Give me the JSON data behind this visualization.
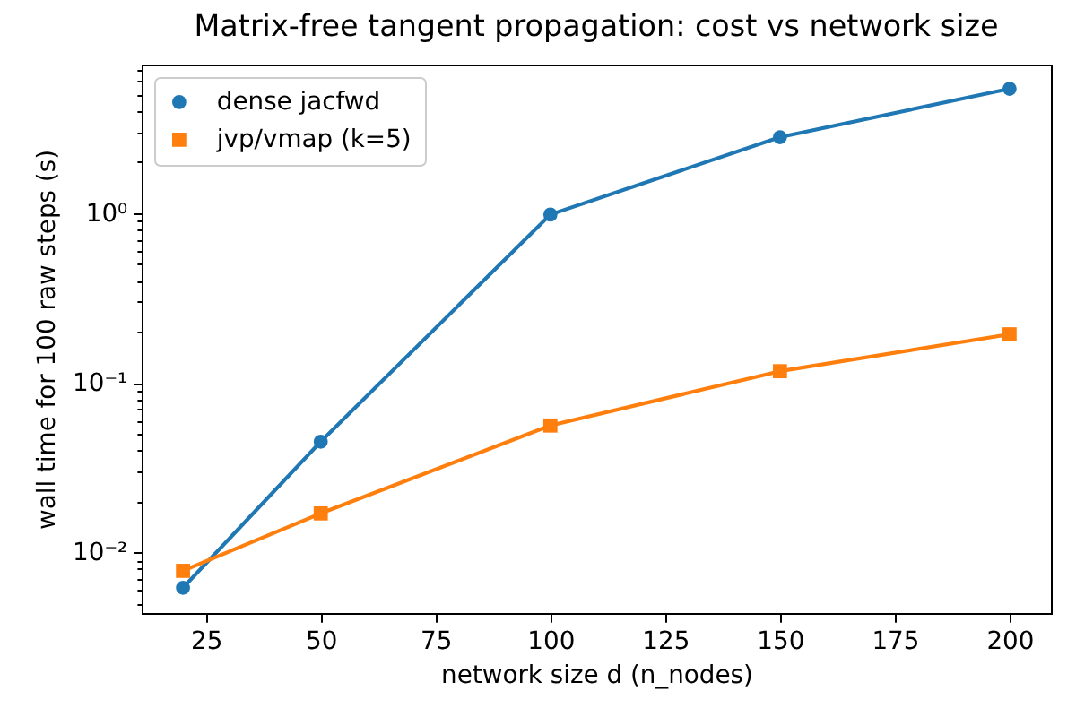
{
  "chart_data": {
    "type": "line",
    "title": "Matrix-free tangent propagation: cost vs network size",
    "xlabel": "network size d (n_nodes)",
    "ylabel": "wall time for 100 raw steps (s)",
    "x": [
      20,
      50,
      100,
      150,
      200
    ],
    "series": [
      {
        "name": "dense jacfwd",
        "color": "#1f77b4",
        "marker": "circle",
        "values": [
          0.0062,
          0.045,
          0.98,
          2.8,
          5.4
        ]
      },
      {
        "name": "jvp/vmap (k=5)",
        "color": "#ff7f0e",
        "marker": "square",
        "values": [
          0.0078,
          0.017,
          0.056,
          0.117,
          0.193
        ]
      }
    ],
    "xlim": [
      11,
      209
    ],
    "xticks": [
      25,
      50,
      75,
      100,
      125,
      150,
      175,
      200
    ],
    "ylim": [
      0.0044,
      7.5
    ],
    "yticks": [
      {
        "value": 0.005,
        "label": null
      },
      {
        "value": 0.006,
        "label": null
      },
      {
        "value": 0.007,
        "label": null
      },
      {
        "value": 0.008,
        "label": null
      },
      {
        "value": 0.009,
        "label": null
      },
      {
        "value": 0.01,
        "label": "10⁻²"
      },
      {
        "value": 0.02,
        "label": null
      },
      {
        "value": 0.03,
        "label": null
      },
      {
        "value": 0.04,
        "label": null
      },
      {
        "value": 0.05,
        "label": null
      },
      {
        "value": 0.06,
        "label": null
      },
      {
        "value": 0.07,
        "label": null
      },
      {
        "value": 0.08,
        "label": null
      },
      {
        "value": 0.09,
        "label": null
      },
      {
        "value": 0.1,
        "label": "10⁻¹"
      },
      {
        "value": 0.2,
        "label": null
      },
      {
        "value": 0.3,
        "label": null
      },
      {
        "value": 0.4,
        "label": null
      },
      {
        "value": 0.5,
        "label": null
      },
      {
        "value": 0.6,
        "label": null
      },
      {
        "value": 0.7,
        "label": null
      },
      {
        "value": 0.8,
        "label": null
      },
      {
        "value": 0.9,
        "label": null
      },
      {
        "value": 1,
        "label": "10⁰"
      },
      {
        "value": 2,
        "label": null
      },
      {
        "value": 3,
        "label": null
      },
      {
        "value": 4,
        "label": null
      },
      {
        "value": 5,
        "label": null
      },
      {
        "value": 6,
        "label": null
      },
      {
        "value": 7,
        "label": null
      }
    ],
    "log": "y",
    "legend": "top left"
  }
}
